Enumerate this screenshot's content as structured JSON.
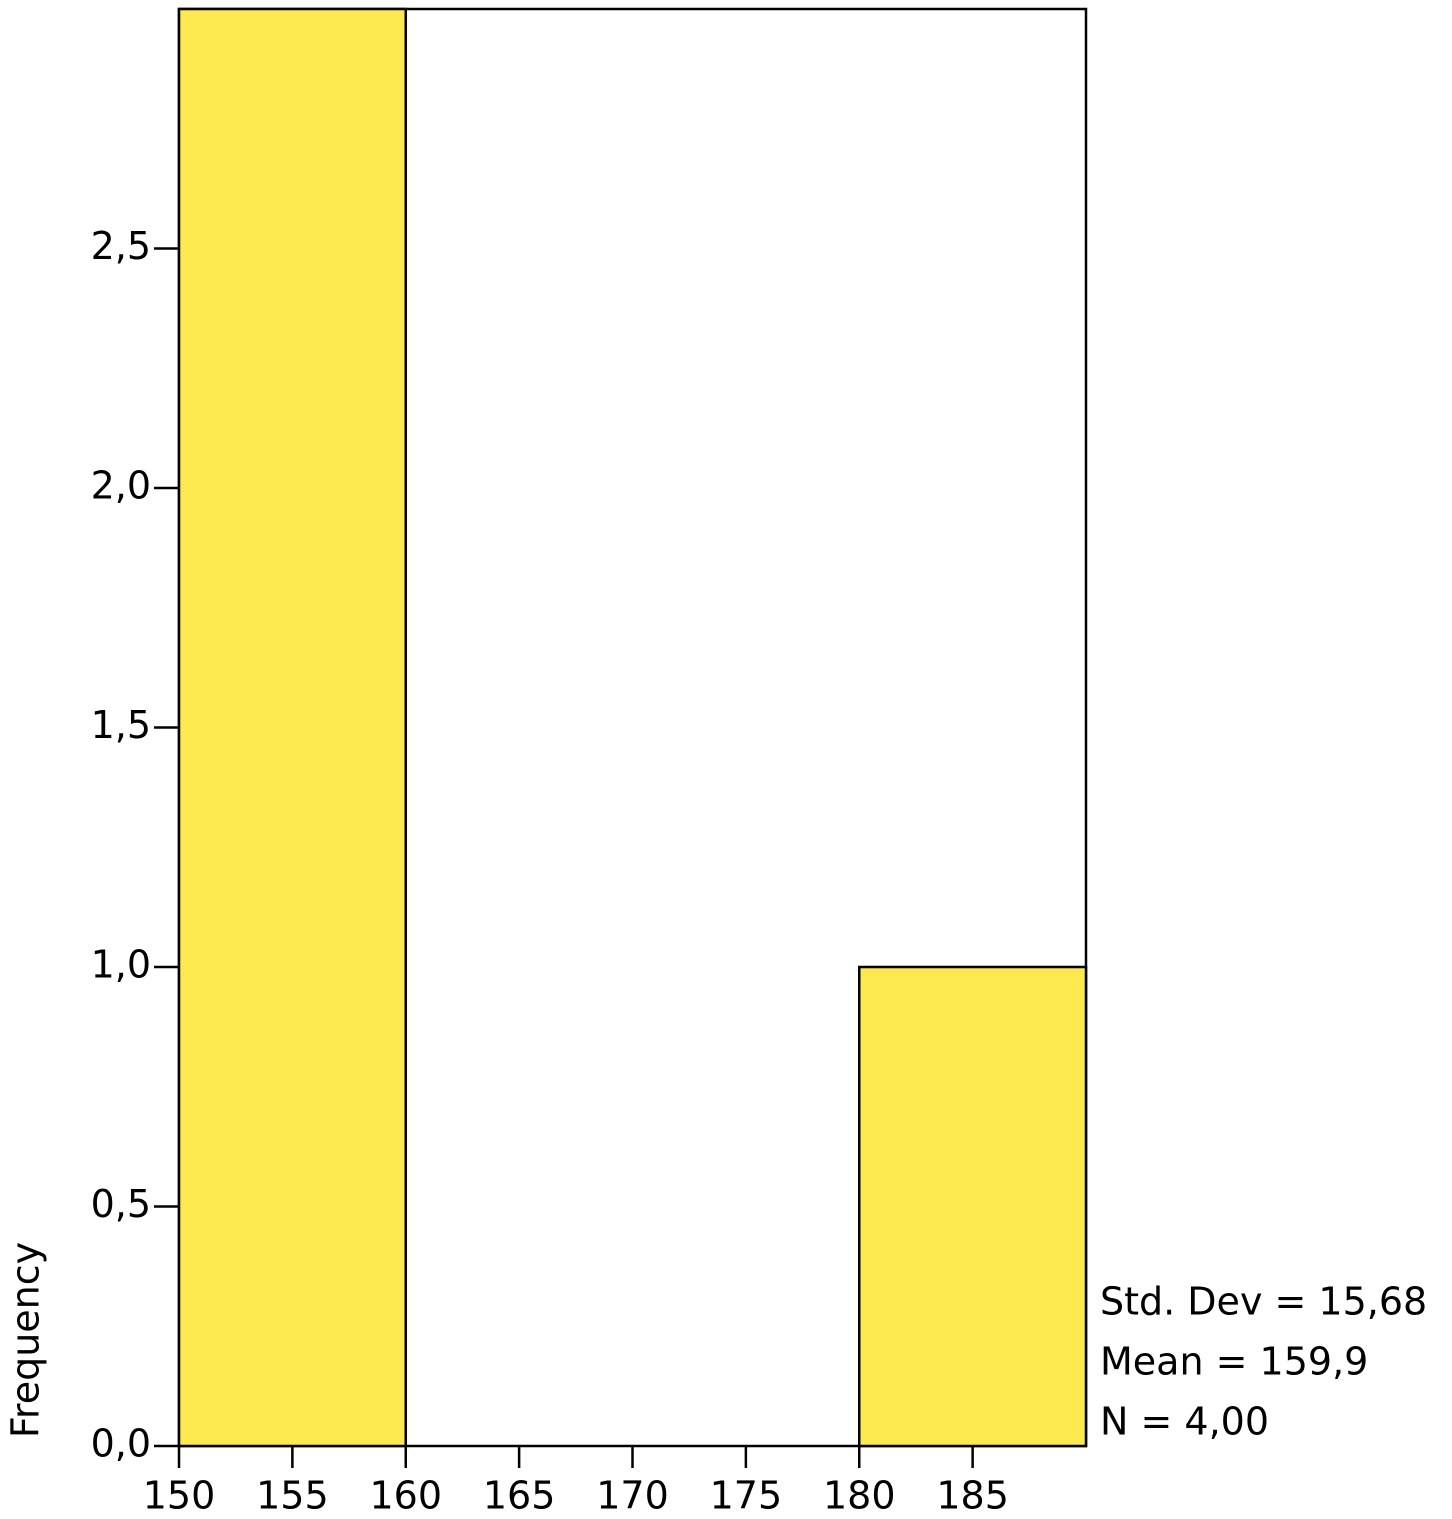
{
  "chart_data": {
    "type": "histogram",
    "y_label": "Frequency",
    "bins": [
      150,
      160,
      170,
      180,
      190
    ],
    "values": [
      3,
      0,
      0,
      1
    ],
    "color": "#fce94f",
    "xlim": [
      150,
      190
    ],
    "ylim": [
      0,
      3
    ],
    "xticks": [
      150,
      155,
      160,
      165,
      170,
      175,
      180,
      185
    ],
    "yticks": [
      {
        "value": 0,
        "label": "0,0"
      },
      {
        "value": 0.5,
        "label": "0,5"
      },
      {
        "value": 1,
        "label": "1,0"
      },
      {
        "value": 1.5,
        "label": "1,5"
      },
      {
        "value": 2,
        "label": "2,0"
      },
      {
        "value": 2.5,
        "label": "2,5"
      }
    ],
    "annotations": [
      "Std. Dev = 15,68",
      "Mean = 159,9",
      "N = 4,00"
    ]
  }
}
